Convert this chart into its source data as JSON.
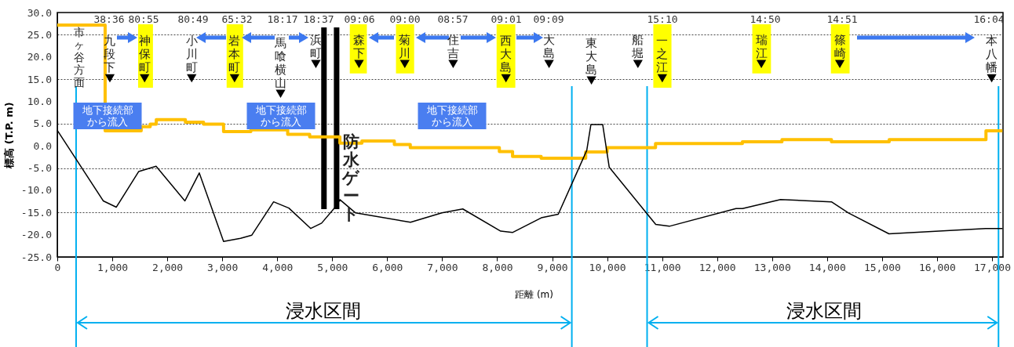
{
  "chart_data": {
    "type": "line",
    "xlabel": "距離 (m)",
    "ylabel": "標高 (T.P. m)",
    "xlim": [
      0,
      17200
    ],
    "ylim": [
      -25,
      30
    ],
    "xticks": [
      0,
      {
        "value": 1000,
        "label": "1,000"
      },
      {
        "value": 2000,
        "label": "2,000"
      },
      {
        "value": 3000,
        "label": "3,000"
      },
      {
        "value": 4000,
        "label": "4,000"
      },
      {
        "value": 5000,
        "label": "5,000"
      },
      {
        "value": 6000,
        "label": "6,000"
      },
      {
        "value": 7000,
        "label": "7,000"
      },
      {
        "value": 8000,
        "label": "8,000"
      },
      {
        "value": 9000,
        "label": "9,000"
      },
      {
        "value": 10000,
        "label": "10,000"
      },
      {
        "value": 11000,
        "label": "11,000"
      },
      {
        "value": 12000,
        "label": "12,000"
      },
      {
        "value": 13000,
        "label": "13,000"
      },
      {
        "value": 14000,
        "label": "14,000"
      },
      {
        "value": 15000,
        "label": "15,000"
      },
      {
        "value": 16000,
        "label": "16,000"
      },
      {
        "value": 17000,
        "label": "17,000"
      }
    ],
    "yticks": [
      {
        "value": -25,
        "label": "-25.0"
      },
      {
        "value": -20,
        "label": "-20.0"
      },
      {
        "value": -15,
        "label": "-15.0"
      },
      {
        "value": -10,
        "label": "-10.0"
      },
      {
        "value": -5,
        "label": "-5.0"
      },
      {
        "value": 0,
        "label": "0.0"
      },
      {
        "value": 5,
        "label": "5.0"
      },
      {
        "value": 10,
        "label": "10.0"
      },
      {
        "value": 15,
        "label": "15.0"
      },
      {
        "value": 20,
        "label": "20.0"
      },
      {
        "value": 25,
        "label": "25.0"
      },
      {
        "value": 30,
        "label": "30.0"
      }
    ],
    "grid": "y",
    "series": [
      {
        "type": "step",
        "color": "#ffc000",
        "x": [
          0,
          870,
          1526,
          1690,
          1800,
          2330,
          2660,
          3024,
          3520,
          4190,
          4590,
          5140,
          5540,
          6130,
          6420,
          8040,
          8280,
          8800,
          9610,
          10000,
          10880,
          12460,
          13180,
          14080,
          15130,
          16890,
          17190
        ],
        "values": [
          27.2,
          3.4,
          4.3,
          4.9,
          5.9,
          5.3,
          4.9,
          3.2,
          3.6,
          2.6,
          2.0,
          0.6,
          1.1,
          0.3,
          -0.4,
          -1.3,
          -2.4,
          -2.8,
          -1.4,
          -0.4,
          0.5,
          0.9,
          1.4,
          0.9,
          1.4,
          3.4,
          3.4
        ]
      },
      {
        "type": "line",
        "color": "#000000",
        "x": [
          0,
          837,
          1074,
          1479,
          1797,
          2321,
          2582,
          3024,
          3333,
          3538,
          3934,
          4211,
          4610,
          4807,
          5069,
          5140,
          5425,
          6424,
          6994,
          7375,
          8064,
          8278,
          8802,
          9111,
          9630,
          9705,
          9919,
          10038,
          10884,
          11131,
          12344,
          12463,
          13153,
          14080,
          14389,
          15126,
          16885,
          17190
        ],
        "values": [
          3.5,
          -12.4,
          -13.8,
          -5.8,
          -4.6,
          -12.4,
          -6.1,
          -21.5,
          -20.8,
          -20.1,
          -12.6,
          -14.0,
          -18.6,
          -17.4,
          -13.6,
          -12.1,
          -15.1,
          -17.2,
          -15.1,
          -14.2,
          -19.2,
          -19.5,
          -16.2,
          -15.4,
          -1.0,
          4.8,
          4.8,
          -4.8,
          -17.7,
          -18.1,
          -14.1,
          -14.1,
          -12.1,
          -12.6,
          -15.1,
          -19.8,
          -18.6,
          -18.6
        ]
      },
      {
        "type": "scatter",
        "marker": "triangle",
        "color": "#000000",
        "x": [
          956,
          1588,
          2444,
          3224,
          4061,
          4703,
          5488,
          6320,
          7200,
          8160,
          8944,
          9715,
          10560,
          11003,
          12805,
          14232,
          16994
        ],
        "values": [
          15.2,
          15.2,
          15.2,
          15.2,
          11.7,
          18.4,
          18.4,
          18.4,
          18.4,
          15.2,
          18.4,
          14.7,
          18.4,
          15.2,
          18.4,
          18.4,
          15.2
        ]
      }
    ],
    "ref_lines": [
      {
        "axis": "x",
        "value": 4850,
        "color": "#000000"
      },
      {
        "axis": "x",
        "value": 5080,
        "color": "#000000"
      },
      {
        "axis": "x",
        "value": 342,
        "color": "#00b0f0"
      },
      {
        "axis": "x",
        "value": 9358,
        "color": "#00b0f0"
      },
      {
        "axis": "x",
        "value": 10727,
        "color": "#00b0f0"
      },
      {
        "axis": "x",
        "value": 17118,
        "color": "#00b0f0"
      }
    ],
    "bands": [
      {
        "axis": "x",
        "from": 1470,
        "to": 1740,
        "color": "#ffff00"
      },
      {
        "axis": "x",
        "from": 3080,
        "to": 3380,
        "color": "#ffff00"
      },
      {
        "axis": "x",
        "from": 5320,
        "to": 5630,
        "color": "#ffff00"
      },
      {
        "axis": "x",
        "from": 6160,
        "to": 6490,
        "color": "#ffff00"
      },
      {
        "axis": "x",
        "from": 7990,
        "to": 8330,
        "color": "#ffff00"
      },
      {
        "axis": "x",
        "from": 10840,
        "to": 11170,
        "color": "#ffff00"
      },
      {
        "axis": "x",
        "from": 12640,
        "to": 12980,
        "color": "#ffff00"
      },
      {
        "axis": "x",
        "from": 14070,
        "to": 14410,
        "color": "#ffff00"
      }
    ],
    "annotations": [
      {
        "text": "九段下",
        "x": 956,
        "y": 15.2
      },
      {
        "text": "神保町",
        "x": 1588,
        "y": 15.2
      },
      {
        "text": "小川町",
        "x": 2444,
        "y": 15.2
      },
      {
        "text": "岩本町",
        "x": 3224,
        "y": 15.2
      },
      {
        "text": "馬喰横山",
        "x": 4061,
        "y": 11.7
      },
      {
        "text": "浜町",
        "x": 4703,
        "y": 18.4
      },
      {
        "text": "森下",
        "x": 5488,
        "y": 18.4
      },
      {
        "text": "菊川",
        "x": 6320,
        "y": 18.4
      },
      {
        "text": "住吉",
        "x": 7200,
        "y": 18.4
      },
      {
        "text": "西大島",
        "x": 8160,
        "y": 15.2
      },
      {
        "text": "大島",
        "x": 8944,
        "y": 18.4
      },
      {
        "text": "東大島",
        "x": 9715,
        "y": 14.7
      },
      {
        "text": "船堀",
        "x": 10560,
        "y": 18.4
      },
      {
        "text": "一之江",
        "x": 11003,
        "y": 15.2
      },
      {
        "text": "瑞江",
        "x": 12805,
        "y": 18.4
      },
      {
        "text": "篠崎",
        "x": 14232,
        "y": 18.4
      },
      {
        "text": "本八幡",
        "x": 16994,
        "y": 15.2
      },
      "38:36",
      "80:55",
      "80:49",
      "65:32",
      "18:17",
      "18:37",
      "09:06",
      "09:00",
      "08:57",
      "09:01",
      "09:09",
      "15:10",
      "14:50",
      "14:51",
      "16:04",
      "市ヶ谷方面",
      "防水ゲート",
      "地下接続部から流入",
      "地下接続部から流入",
      "地下接続部から流入",
      "浸水区間",
      "浸水区間"
    ]
  }
}
